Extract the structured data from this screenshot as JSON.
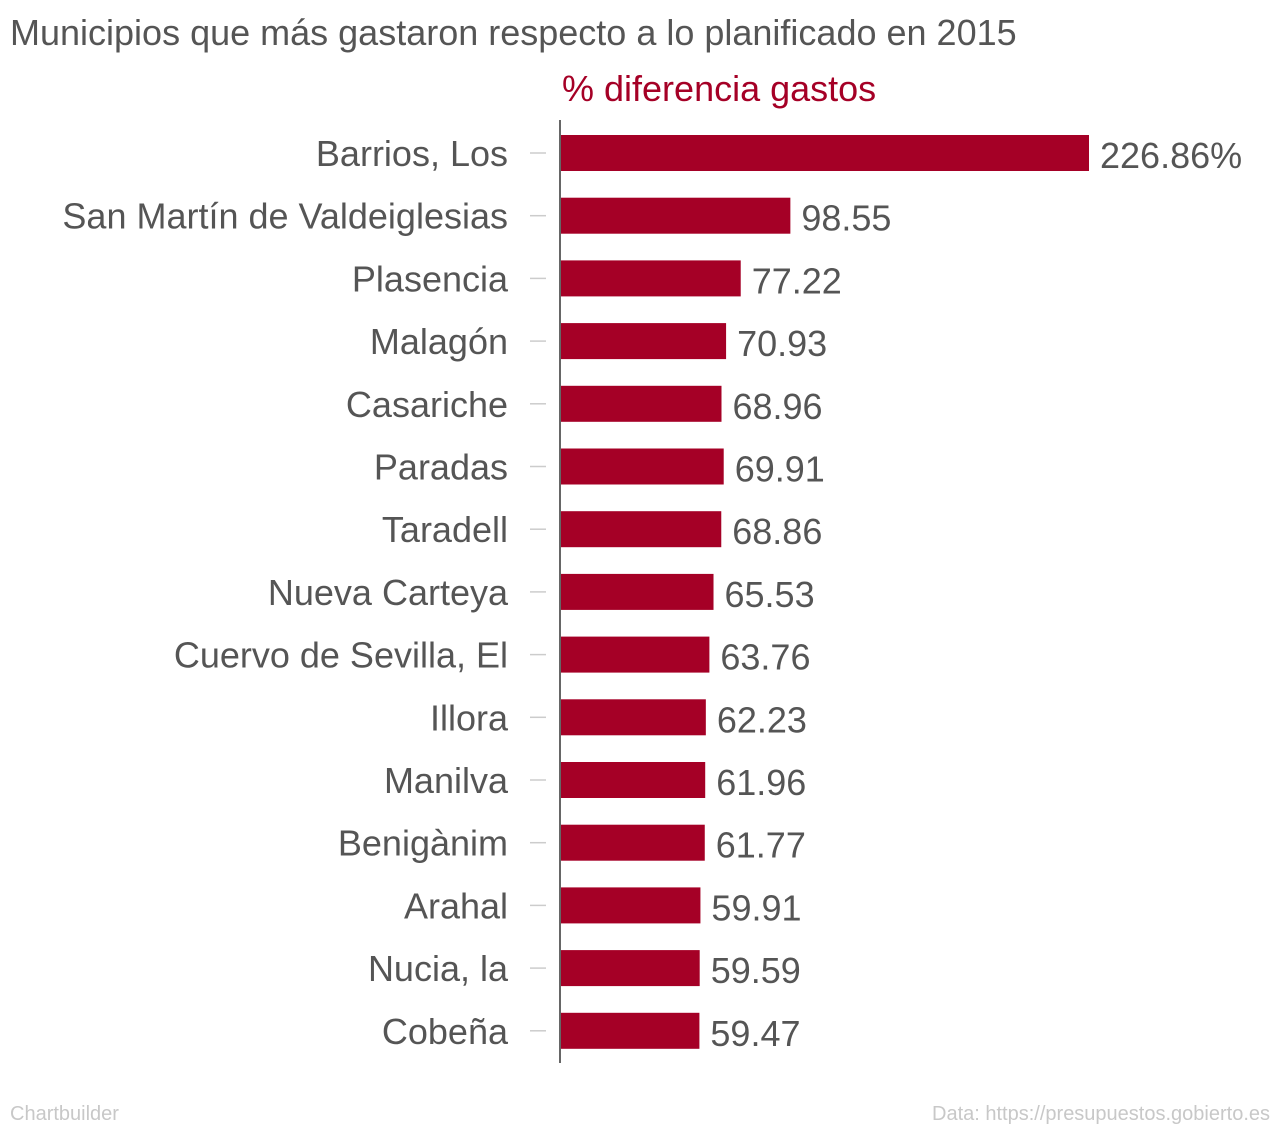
{
  "title": "Municipios que más gastaron respecto a lo planificado en 2015",
  "series_label": "% diferencia gastos",
  "footer": {
    "credit": "Chartbuilder",
    "source": "Data: https://presupuestos.gobierto.es"
  },
  "colors": {
    "bar": "#a50026",
    "text": "#555555",
    "axis": "#333333",
    "tick": "#cccccc",
    "footer": "#c8c8c8"
  },
  "chart_data": {
    "type": "bar",
    "orientation": "horizontal",
    "categories": [
      "Barrios, Los",
      "San Martín de Valdeiglesias",
      "Plasencia",
      "Malagón",
      "Casariche",
      "Paradas",
      "Taradell",
      "Nueva Carteya",
      "Cuervo de Sevilla, El",
      "Illora",
      "Manilva",
      "Benigànim",
      "Arahal",
      "Nucia, la",
      "Cobeña"
    ],
    "values": [
      226.86,
      98.55,
      77.22,
      70.93,
      68.96,
      69.91,
      68.86,
      65.53,
      63.76,
      62.23,
      61.96,
      61.77,
      59.91,
      59.59,
      59.47
    ],
    "value_labels": [
      "226.86%",
      "98.55",
      "77.22",
      "70.93",
      "68.96",
      "69.91",
      "68.86",
      "65.53",
      "63.76",
      "62.23",
      "61.96",
      "61.77",
      "59.91",
      "59.59",
      "59.47"
    ],
    "title": "Municipios que más gastaron respecto a lo planificado en 2015",
    "series": [
      {
        "name": "% diferencia gastos",
        "values": [
          226.86,
          98.55,
          77.22,
          70.93,
          68.96,
          69.91,
          68.86,
          65.53,
          63.76,
          62.23,
          61.96,
          61.77,
          59.91,
          59.59,
          59.47
        ]
      }
    ],
    "xlim": [
      0,
      226.86
    ],
    "grid": false
  }
}
